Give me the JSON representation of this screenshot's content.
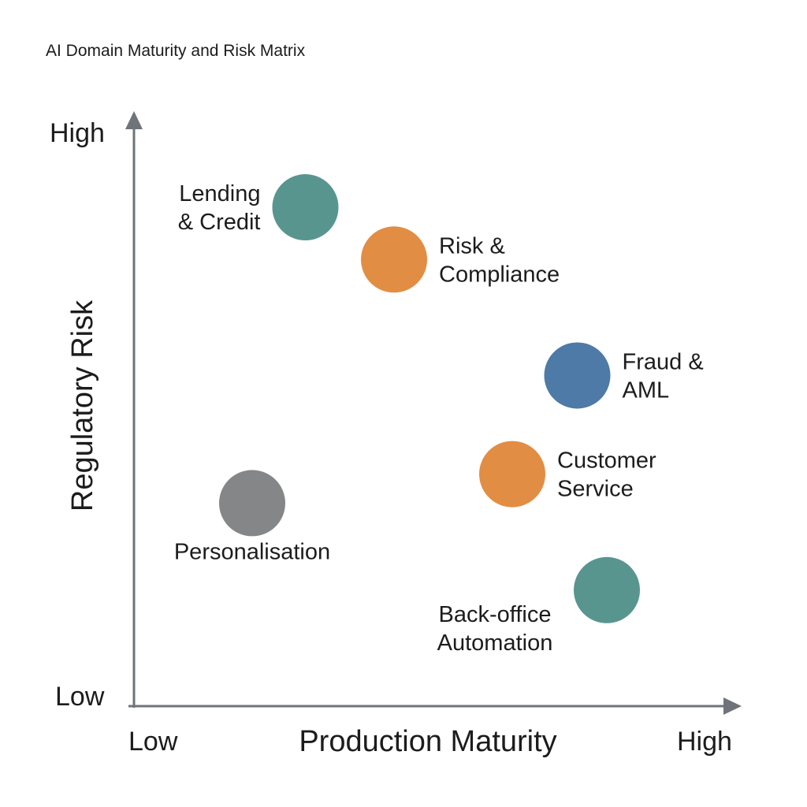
{
  "chart_data": {
    "type": "scatter",
    "title": "AI Domain Maturity and Risk Matrix",
    "xlabel": "Production Maturity",
    "ylabel": "Regulatory Risk",
    "x_ticks": [
      "Low",
      "High"
    ],
    "y_ticks": [
      "Low",
      "High"
    ],
    "xlim": [
      0,
      10
    ],
    "ylim": [
      0,
      10
    ],
    "grid": false,
    "legend": "none",
    "points": [
      {
        "label": [
          "Lending",
          "& Credit"
        ],
        "x": 2.9,
        "y": 8.6,
        "color": "#59958f",
        "label_side": "left"
      },
      {
        "label": [
          "Risk &",
          "Compliance"
        ],
        "x": 4.4,
        "y": 7.7,
        "color": "#e28d44",
        "label_side": "right"
      },
      {
        "label": [
          "Fraud &",
          "AML"
        ],
        "x": 7.5,
        "y": 5.7,
        "color": "#4d7aa7",
        "label_side": "right"
      },
      {
        "label": [
          "Customer",
          "Service"
        ],
        "x": 6.4,
        "y": 4.0,
        "color": "#e28d44",
        "label_side": "right"
      },
      {
        "label": [
          "Personalisation"
        ],
        "x": 2.0,
        "y": 3.5,
        "color": "#858687",
        "label_side": "below"
      },
      {
        "label": [
          "Back-office",
          "Automation"
        ],
        "x": 8.0,
        "y": 2.0,
        "color": "#59958f",
        "label_side": "below-left"
      }
    ]
  }
}
